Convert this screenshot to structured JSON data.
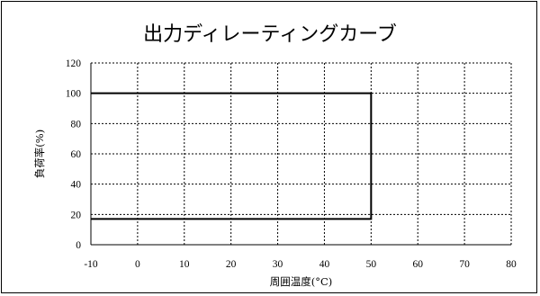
{
  "chart_data": {
    "type": "line",
    "title": "出力ディレーティングカーブ",
    "xlabel": "周囲温度(°C)",
    "ylabel": "負荷率(%)",
    "xlim": [
      -10,
      80
    ],
    "ylim": [
      0,
      120
    ],
    "x_ticks": [
      -10,
      0,
      10,
      20,
      30,
      40,
      50,
      60,
      70,
      80
    ],
    "y_ticks": [
      0,
      20,
      40,
      60,
      80,
      100,
      120
    ],
    "grid": true,
    "grid_style": "dotted",
    "legend": "none",
    "line_color": "#000000",
    "series": [
      {
        "x": [
          -10,
          50,
          50,
          -10
        ],
        "y": [
          100,
          100,
          17,
          17
        ]
      }
    ]
  }
}
